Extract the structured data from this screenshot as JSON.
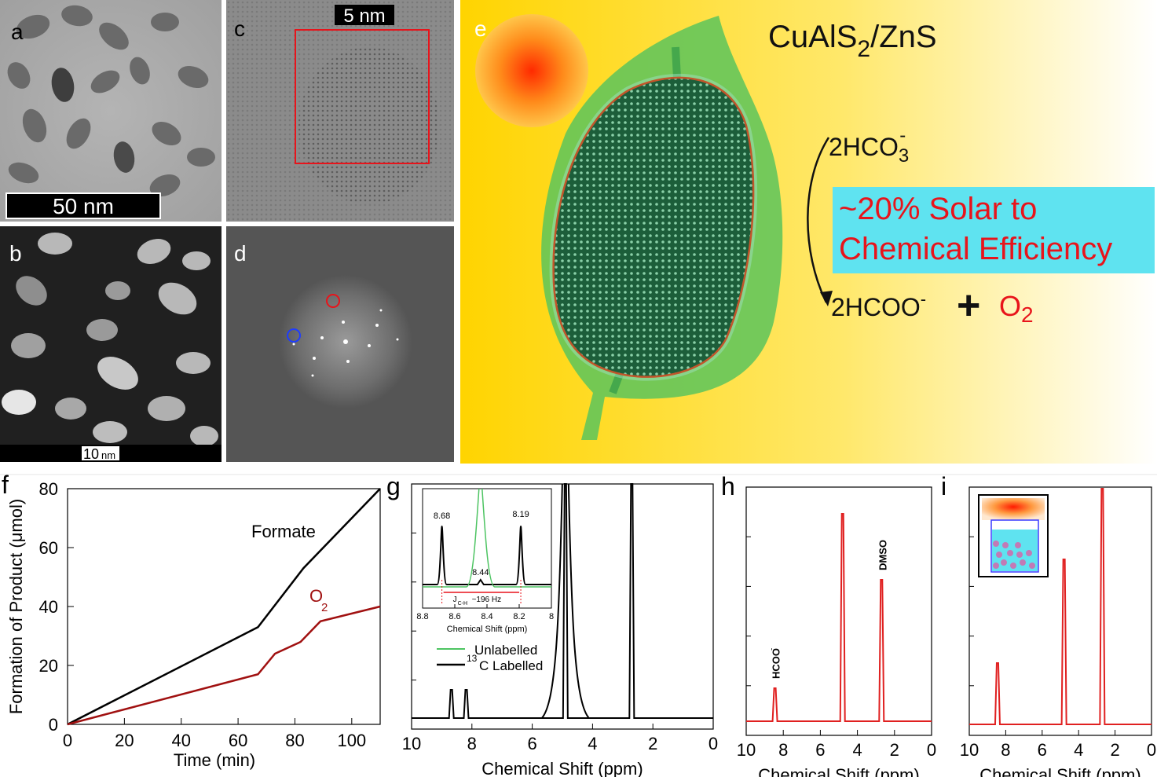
{
  "panels": {
    "a": {
      "label": "a",
      "scalebar": "50 nm"
    },
    "b": {
      "label": "b",
      "scalebar_num": "10",
      "scalebar_unit": "nm"
    },
    "c": {
      "label": "c",
      "scalebar": "5 nm"
    },
    "d": {
      "label": "d"
    },
    "e": {
      "label": "e",
      "title_main": "CuAlS",
      "title_sub": "2",
      "title_tail": "/ZnS",
      "reactant_pre": "2HCO",
      "reactant_sub": "3",
      "reactant_sup": "-",
      "efficiency_line1": "~20% Solar to",
      "efficiency_line2": "Chemical Efficiency",
      "product_formate": "2HCOO",
      "product_formate_sup": "-",
      "plus": "+",
      "product_o2": "O",
      "product_o2_sub": "2"
    },
    "f": {
      "label": "f"
    },
    "g": {
      "label": "g"
    },
    "h": {
      "label": "h"
    },
    "i": {
      "label": "i"
    }
  },
  "colors": {
    "accent_red": "#e8141b",
    "dark_red": "#a01010",
    "cyan_box": "#5fe3f0",
    "nmr_red": "#e02020"
  },
  "chart_data": [
    {
      "id": "f",
      "type": "line",
      "xlabel": "Time (min)",
      "ylabel": "Formation of Product (μmol)",
      "xlim": [
        0,
        110
      ],
      "ylim": [
        0,
        80
      ],
      "xticks": [
        0,
        20,
        40,
        60,
        80,
        100
      ],
      "yticks": [
        0,
        20,
        40,
        60,
        80
      ],
      "series": [
        {
          "name": "Formate",
          "color": "#000000",
          "x": [
            0,
            67,
            83,
            110
          ],
          "y": [
            0,
            33,
            53,
            80
          ]
        },
        {
          "name": "O",
          "name_sub": "2",
          "color": "#a01010",
          "x": [
            0,
            67,
            73,
            82,
            89,
            110
          ],
          "y": [
            0,
            17,
            24,
            28,
            35,
            40
          ]
        }
      ]
    },
    {
      "id": "g",
      "type": "line",
      "xlabel": "Chemical Shift (ppm)",
      "xlim": [
        10,
        0
      ],
      "xticks": [
        10,
        8,
        6,
        4,
        2,
        0
      ],
      "peaks": [
        {
          "ppm": 8.68,
          "height": 0.12
        },
        {
          "ppm": 8.19,
          "height": 0.12
        },
        {
          "ppm": 4.9,
          "height": 1.2
        },
        {
          "ppm": 2.7,
          "height": 1.2
        }
      ],
      "legend": [
        {
          "label": "Unlabelled",
          "color": "#4dc462"
        },
        {
          "label": "C Labelled",
          "label_sup": "13",
          "color": "#000000"
        }
      ],
      "inset": {
        "xlabel": "Chemical Shift (ppm)",
        "xlim": [
          8.8,
          8.0
        ],
        "xticks": [
          "8.8",
          "8.6",
          "8.4",
          "8.2",
          "8"
        ],
        "peak_labels": [
          "8.68",
          "8.44",
          "8.19"
        ],
        "coupling_prefix": "J",
        "coupling_sub": "C-H",
        "coupling_value": "~196 Hz"
      }
    },
    {
      "id": "h",
      "type": "line",
      "xlabel": "Chemical Shift (ppm)",
      "xlim": [
        10,
        0
      ],
      "xticks": [
        10,
        8,
        6,
        4,
        2,
        0
      ],
      "peaks": [
        {
          "ppm": 8.45,
          "height": 0.14,
          "label": "HCOO",
          "label_sup": "-"
        },
        {
          "ppm": 4.8,
          "height": 0.88
        },
        {
          "ppm": 2.7,
          "height": 0.6,
          "label": "DMSO"
        }
      ]
    },
    {
      "id": "i",
      "type": "line",
      "xlabel": "Chemical Shift (ppm)",
      "xlim": [
        10,
        0
      ],
      "xticks": [
        10,
        8,
        6,
        4,
        2,
        0
      ],
      "peaks": [
        {
          "ppm": 8.45,
          "height": 0.26
        },
        {
          "ppm": 4.8,
          "height": 0.7
        },
        {
          "ppm": 2.7,
          "height": 1.0
        }
      ]
    }
  ]
}
